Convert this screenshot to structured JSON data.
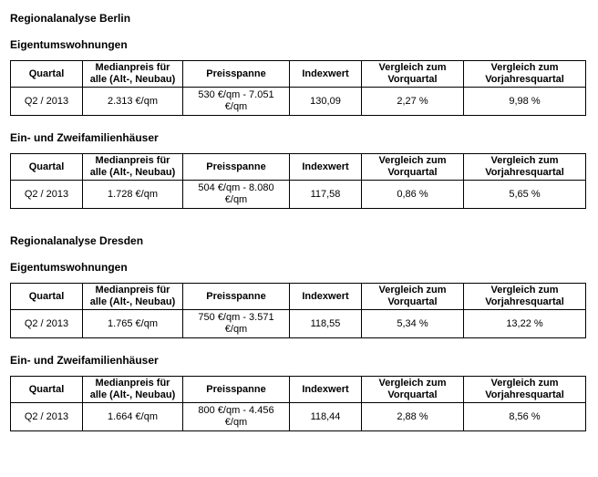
{
  "page": {
    "background_color": "#ffffff",
    "text_color": "#000000",
    "table_border_color": "#000000"
  },
  "table_headers": [
    "Quartal",
    "Medianpreis für alle (Alt-, Neubau)",
    "Preisspanne",
    "Indexwert",
    "Vergleich zum Vorquartal",
    "Vergleich zum Vorjahresquartal"
  ],
  "sections": [
    {
      "title": "Regionalanalyse Berlin",
      "subsections": [
        {
          "title": "Eigentumswohnungen",
          "row": [
            "Q2 / 2013",
            "2.313 €/qm",
            "530 €/qm - 7.051 €/qm",
            "130,09",
            "2,27 %",
            "9,98 %"
          ]
        },
        {
          "title": "Ein- und Zweifamilienhäuser",
          "row": [
            "Q2 / 2013",
            "1.728 €/qm",
            "504 €/qm - 8.080 €/qm",
            "117,58",
            "0,86 %",
            "5,65 %"
          ]
        }
      ]
    },
    {
      "title": "Regionalanalyse Dresden",
      "subsections": [
        {
          "title": "Eigentumswohnungen",
          "row": [
            "Q2 / 2013",
            "1.765 €/qm",
            "750 €/qm - 3.571 €/qm",
            "118,55",
            "5,34 %",
            "13,22 %"
          ]
        },
        {
          "title": "Ein- und Zweifamilienhäuser",
          "row": [
            "Q2 / 2013",
            "1.664 €/qm",
            "800 €/qm - 4.456 €/qm",
            "118,44",
            "2,88 %",
            "8,56 %"
          ]
        }
      ]
    }
  ]
}
